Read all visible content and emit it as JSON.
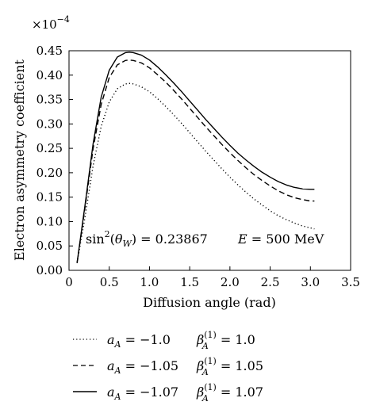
{
  "chart_data": {
    "type": "line",
    "xlabel": "Diffusion angle (rad)",
    "ylabel": "Electron asymmetry coefficient",
    "xlim": [
      0,
      3.5
    ],
    "ylim": [
      0,
      0.45
    ],
    "y_multiplier": "×10",
    "y_multiplier_exp": "−4",
    "xticks": [
      "0",
      "0.5",
      "1.0",
      "1.5",
      "2.0",
      "2.5",
      "3.0",
      "3.5"
    ],
    "yticks": [
      "0.00",
      "0.05",
      "0.10",
      "0.15",
      "0.20",
      "0.25",
      "0.30",
      "0.35",
      "0.40",
      "0.45"
    ],
    "grid": false,
    "annotation": {
      "sin2_lhs": "sin",
      "sin2_exp": "2",
      "sin2_arg_open": "(",
      "sin2_theta": "θ",
      "sin2_sub": "W",
      "sin2_arg_close": ")",
      "sin2_value": " = 0.23867",
      "energy_var": "E",
      "energy_value": " = 500 MeV"
    },
    "x": [
      0.1,
      0.2,
      0.3,
      0.4,
      0.5,
      0.6,
      0.7,
      0.75,
      0.8,
      0.9,
      1.0,
      1.1,
      1.2,
      1.3,
      1.4,
      1.5,
      1.6,
      1.7,
      1.8,
      1.9,
      2.0,
      2.1,
      2.2,
      2.3,
      2.4,
      2.5,
      2.6,
      2.7,
      2.8,
      2.9,
      3.0,
      3.05
    ],
    "series": [
      {
        "style": "dotted",
        "values": [
          0.015,
          0.11,
          0.215,
          0.295,
          0.345,
          0.372,
          0.382,
          0.383,
          0.382,
          0.376,
          0.366,
          0.352,
          0.336,
          0.319,
          0.301,
          0.282,
          0.263,
          0.244,
          0.226,
          0.208,
          0.191,
          0.175,
          0.16,
          0.146,
          0.134,
          0.122,
          0.112,
          0.104,
          0.097,
          0.091,
          0.087,
          0.085
        ]
      },
      {
        "style": "dashed",
        "values": [
          0.015,
          0.13,
          0.25,
          0.34,
          0.395,
          0.421,
          0.43,
          0.431,
          0.43,
          0.425,
          0.415,
          0.401,
          0.386,
          0.369,
          0.351,
          0.332,
          0.313,
          0.294,
          0.276,
          0.258,
          0.241,
          0.225,
          0.21,
          0.196,
          0.184,
          0.173,
          0.163,
          0.155,
          0.149,
          0.145,
          0.142,
          0.142
        ]
      },
      {
        "style": "solid",
        "values": [
          0.015,
          0.135,
          0.26,
          0.355,
          0.41,
          0.437,
          0.446,
          0.447,
          0.446,
          0.441,
          0.431,
          0.417,
          0.401,
          0.384,
          0.366,
          0.347,
          0.328,
          0.309,
          0.291,
          0.273,
          0.256,
          0.24,
          0.226,
          0.213,
          0.201,
          0.191,
          0.182,
          0.175,
          0.17,
          0.167,
          0.166,
          0.166
        ]
      }
    ],
    "legend": [
      {
        "style": "dotted",
        "a_var": "a",
        "a_sub": "A",
        "a_val": " = −1.0",
        "b_var": "β",
        "b_sup": "(1)",
        "b_sub": "A",
        "b_val": " = 1.0"
      },
      {
        "style": "dashed",
        "a_var": "a",
        "a_sub": "A",
        "a_val": " = −1.05",
        "b_var": "β",
        "b_sup": "(1)",
        "b_sub": "A",
        "b_val": " = 1.05"
      },
      {
        "style": "solid",
        "a_var": "a",
        "a_sub": "A",
        "a_val": " = −1.07",
        "b_var": "β",
        "b_sup": "(1)",
        "b_sub": "A",
        "b_val": " = 1.07"
      }
    ],
    "colors": {
      "line": "#000000",
      "axes": "#000000",
      "background": "#ffffff"
    }
  }
}
